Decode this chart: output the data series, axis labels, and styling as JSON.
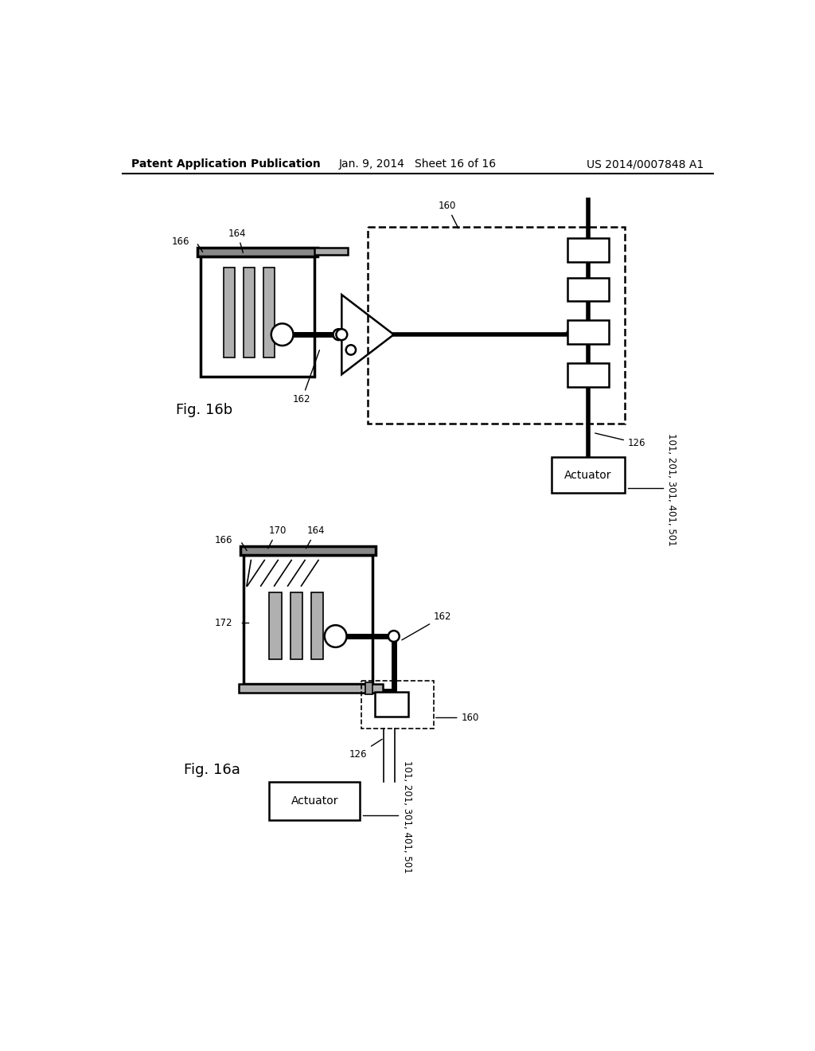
{
  "bg_color": "#ffffff",
  "header_left": "Patent Application Publication",
  "header_mid": "Jan. 9, 2014   Sheet 16 of 16",
  "header_right": "US 2014/0007848 A1",
  "fig_label_a": "Fig. 16a",
  "fig_label_b": "Fig. 16b",
  "header_fontsize": 10,
  "label_fontsize": 8.5,
  "fig_label_fontsize": 13,
  "actuator_fontsize": 10
}
